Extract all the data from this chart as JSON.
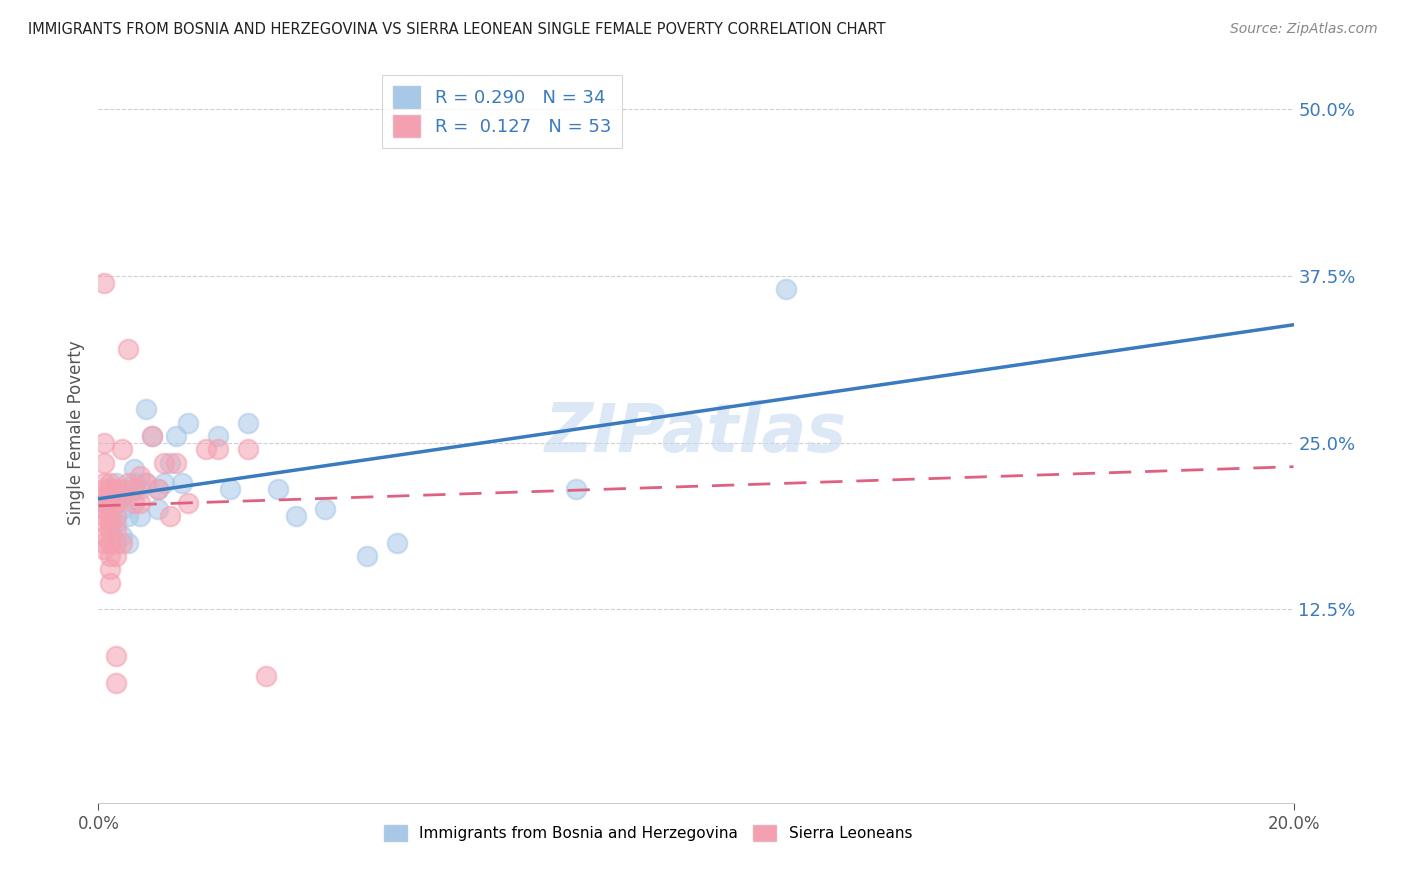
{
  "title": "IMMIGRANTS FROM BOSNIA AND HERZEGOVINA VS SIERRA LEONEAN SINGLE FEMALE POVERTY CORRELATION CHART",
  "source": "Source: ZipAtlas.com",
  "ylabel": "Single Female Poverty",
  "ytick_vals": [
    0.125,
    0.25,
    0.375,
    0.5
  ],
  "xmin": 0.0,
  "xmax": 0.2,
  "ymin": -0.02,
  "ymax": 0.535,
  "blue_color": "#a8c8e8",
  "pink_color": "#f4a0b0",
  "blue_line_color": "#3a7abf",
  "pink_line_color": "#e06080",
  "blue_scatter": [
    [
      0.001,
      0.205
    ],
    [
      0.002,
      0.21
    ],
    [
      0.003,
      0.22
    ],
    [
      0.003,
      0.19
    ],
    [
      0.004,
      0.21
    ],
    [
      0.004,
      0.2
    ],
    [
      0.004,
      0.18
    ],
    [
      0.005,
      0.21
    ],
    [
      0.005,
      0.195
    ],
    [
      0.005,
      0.175
    ],
    [
      0.006,
      0.22
    ],
    [
      0.006,
      0.23
    ],
    [
      0.007,
      0.215
    ],
    [
      0.007,
      0.195
    ],
    [
      0.008,
      0.275
    ],
    [
      0.008,
      0.22
    ],
    [
      0.009,
      0.255
    ],
    [
      0.01,
      0.215
    ],
    [
      0.01,
      0.2
    ],
    [
      0.011,
      0.22
    ],
    [
      0.012,
      0.235
    ],
    [
      0.013,
      0.255
    ],
    [
      0.014,
      0.22
    ],
    [
      0.015,
      0.265
    ],
    [
      0.02,
      0.255
    ],
    [
      0.022,
      0.215
    ],
    [
      0.025,
      0.265
    ],
    [
      0.03,
      0.215
    ],
    [
      0.033,
      0.195
    ],
    [
      0.038,
      0.2
    ],
    [
      0.045,
      0.165
    ],
    [
      0.05,
      0.175
    ],
    [
      0.08,
      0.215
    ],
    [
      0.115,
      0.365
    ]
  ],
  "pink_scatter": [
    [
      0.001,
      0.37
    ],
    [
      0.001,
      0.25
    ],
    [
      0.001,
      0.235
    ],
    [
      0.001,
      0.22
    ],
    [
      0.001,
      0.215
    ],
    [
      0.001,
      0.21
    ],
    [
      0.001,
      0.205
    ],
    [
      0.001,
      0.2
    ],
    [
      0.001,
      0.195
    ],
    [
      0.001,
      0.19
    ],
    [
      0.001,
      0.18
    ],
    [
      0.001,
      0.175
    ],
    [
      0.001,
      0.17
    ],
    [
      0.002,
      0.22
    ],
    [
      0.002,
      0.215
    ],
    [
      0.002,
      0.21
    ],
    [
      0.002,
      0.205
    ],
    [
      0.002,
      0.195
    ],
    [
      0.002,
      0.19
    ],
    [
      0.002,
      0.185
    ],
    [
      0.002,
      0.175
    ],
    [
      0.002,
      0.165
    ],
    [
      0.002,
      0.155
    ],
    [
      0.002,
      0.145
    ],
    [
      0.003,
      0.215
    ],
    [
      0.003,
      0.205
    ],
    [
      0.003,
      0.195
    ],
    [
      0.003,
      0.185
    ],
    [
      0.003,
      0.175
    ],
    [
      0.003,
      0.165
    ],
    [
      0.003,
      0.09
    ],
    [
      0.003,
      0.07
    ],
    [
      0.004,
      0.245
    ],
    [
      0.004,
      0.215
    ],
    [
      0.004,
      0.21
    ],
    [
      0.004,
      0.175
    ],
    [
      0.005,
      0.32
    ],
    [
      0.005,
      0.22
    ],
    [
      0.006,
      0.215
    ],
    [
      0.006,
      0.205
    ],
    [
      0.007,
      0.225
    ],
    [
      0.007,
      0.205
    ],
    [
      0.008,
      0.22
    ],
    [
      0.009,
      0.255
    ],
    [
      0.01,
      0.215
    ],
    [
      0.011,
      0.235
    ],
    [
      0.012,
      0.195
    ],
    [
      0.013,
      0.235
    ],
    [
      0.015,
      0.205
    ],
    [
      0.018,
      0.245
    ],
    [
      0.02,
      0.245
    ],
    [
      0.025,
      0.245
    ],
    [
      0.028,
      0.075
    ]
  ]
}
